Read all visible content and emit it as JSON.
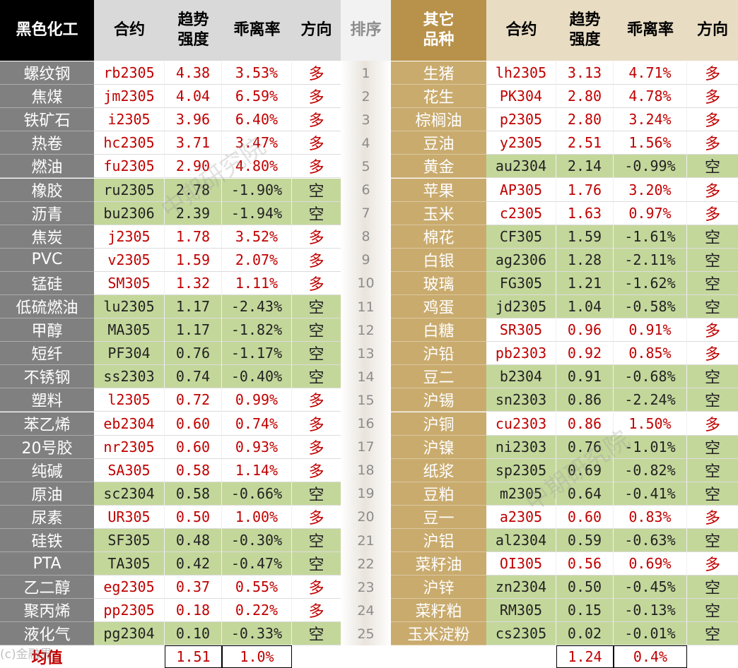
{
  "headers": {
    "left_group": "黑色化工",
    "contract": "合约",
    "strength": "趋势强度",
    "deviation": "乖离率",
    "direction": "方向",
    "rank": "排序",
    "right_group": "其它品种"
  },
  "colors": {
    "long_text": "#c00000",
    "short_bg": "#c4d79b",
    "left_header_bg": "#000000",
    "left_name_bg": "#808080",
    "right_name_bg": "#c9ab6e",
    "right_header_bg": "#b8924a",
    "right_subheader_bg": "#e8dcc3",
    "left_subheader_bg": "#d9d9d9"
  },
  "left_rows": [
    {
      "name": "螺纹钢",
      "contract": "rb2305",
      "strength": "4.38",
      "deviation": "3.53%",
      "direction": "多"
    },
    {
      "name": "焦煤",
      "contract": "jm2305",
      "strength": "4.04",
      "deviation": "6.59%",
      "direction": "多"
    },
    {
      "name": "铁矿石",
      "contract": "i2305",
      "strength": "3.96",
      "deviation": "6.40%",
      "direction": "多"
    },
    {
      "name": "热卷",
      "contract": "hc2305",
      "strength": "3.71",
      "deviation": "3.47%",
      "direction": "多"
    },
    {
      "name": "燃油",
      "contract": "fu2305",
      "strength": "2.90",
      "deviation": "4.80%",
      "direction": "多"
    },
    {
      "name": "橡胶",
      "contract": "ru2305",
      "strength": "2.78",
      "deviation": "-1.90%",
      "direction": "空"
    },
    {
      "name": "沥青",
      "contract": "bu2306",
      "strength": "2.39",
      "deviation": "-1.94%",
      "direction": "空"
    },
    {
      "name": "焦炭",
      "contract": "j2305",
      "strength": "1.78",
      "deviation": "3.52%",
      "direction": "多"
    },
    {
      "name": "PVC",
      "contract": "v2305",
      "strength": "1.59",
      "deviation": "2.07%",
      "direction": "多"
    },
    {
      "name": "锰硅",
      "contract": "SM305",
      "strength": "1.32",
      "deviation": "1.11%",
      "direction": "多"
    },
    {
      "name": "低硫燃油",
      "contract": "lu2305",
      "strength": "1.17",
      "deviation": "-2.43%",
      "direction": "空"
    },
    {
      "name": "甲醇",
      "contract": "MA305",
      "strength": "1.17",
      "deviation": "-1.82%",
      "direction": "空"
    },
    {
      "name": "短纤",
      "contract": "PF304",
      "strength": "0.76",
      "deviation": "-1.17%",
      "direction": "空"
    },
    {
      "name": "不锈钢",
      "contract": "ss2303",
      "strength": "0.74",
      "deviation": "-0.40%",
      "direction": "空"
    },
    {
      "name": "塑料",
      "contract": "l2305",
      "strength": "0.72",
      "deviation": "0.99%",
      "direction": "多"
    },
    {
      "name": "苯乙烯",
      "contract": "eb2304",
      "strength": "0.60",
      "deviation": "0.74%",
      "direction": "多"
    },
    {
      "name": "20号胶",
      "contract": "nr2305",
      "strength": "0.60",
      "deviation": "0.93%",
      "direction": "多"
    },
    {
      "name": "纯碱",
      "contract": "SA305",
      "strength": "0.58",
      "deviation": "1.14%",
      "direction": "多"
    },
    {
      "name": "原油",
      "contract": "sc2304",
      "strength": "0.58",
      "deviation": "-0.66%",
      "direction": "空"
    },
    {
      "name": "尿素",
      "contract": "UR305",
      "strength": "0.50",
      "deviation": "1.00%",
      "direction": "多"
    },
    {
      "name": "硅铁",
      "contract": "SF305",
      "strength": "0.48",
      "deviation": "-0.30%",
      "direction": "空"
    },
    {
      "name": "PTA",
      "contract": "TA305",
      "strength": "0.42",
      "deviation": "-0.47%",
      "direction": "空"
    },
    {
      "name": "乙二醇",
      "contract": "eg2305",
      "strength": "0.37",
      "deviation": "0.55%",
      "direction": "多"
    },
    {
      "name": "聚丙烯",
      "contract": "pp2305",
      "strength": "0.18",
      "deviation": "0.22%",
      "direction": "多"
    },
    {
      "name": "液化气",
      "contract": "pg2304",
      "strength": "0.10",
      "deviation": "-0.33%",
      "direction": "空"
    }
  ],
  "ranks": [
    "1",
    "2",
    "3",
    "4",
    "5",
    "6",
    "7",
    "8",
    "9",
    "10",
    "11",
    "12",
    "13",
    "14",
    "15",
    "16",
    "17",
    "18",
    "19",
    "20",
    "21",
    "22",
    "23",
    "24",
    "25"
  ],
  "right_rows": [
    {
      "name": "生猪",
      "contract": "lh2305",
      "strength": "3.13",
      "deviation": "4.71%",
      "direction": "多"
    },
    {
      "name": "花生",
      "contract": "PK304",
      "strength": "2.80",
      "deviation": "4.78%",
      "direction": "多"
    },
    {
      "name": "棕榈油",
      "contract": "p2305",
      "strength": "2.80",
      "deviation": "3.24%",
      "direction": "多"
    },
    {
      "name": "豆油",
      "contract": "y2305",
      "strength": "2.51",
      "deviation": "1.56%",
      "direction": "多"
    },
    {
      "name": "黄金",
      "contract": "au2304",
      "strength": "2.14",
      "deviation": "-0.99%",
      "direction": "空"
    },
    {
      "name": "苹果",
      "contract": "AP305",
      "strength": "1.76",
      "deviation": "3.20%",
      "direction": "多"
    },
    {
      "name": "玉米",
      "contract": "c2305",
      "strength": "1.63",
      "deviation": "0.97%",
      "direction": "多"
    },
    {
      "name": "棉花",
      "contract": "CF305",
      "strength": "1.59",
      "deviation": "-1.61%",
      "direction": "空"
    },
    {
      "name": "白银",
      "contract": "ag2306",
      "strength": "1.28",
      "deviation": "-2.11%",
      "direction": "空"
    },
    {
      "name": "玻璃",
      "contract": "FG305",
      "strength": "1.21",
      "deviation": "-1.62%",
      "direction": "空"
    },
    {
      "name": "鸡蛋",
      "contract": "jd2305",
      "strength": "1.04",
      "deviation": "-0.58%",
      "direction": "空"
    },
    {
      "name": "白糖",
      "contract": "SR305",
      "strength": "0.96",
      "deviation": "0.91%",
      "direction": "多"
    },
    {
      "name": "沪铅",
      "contract": "pb2303",
      "strength": "0.92",
      "deviation": "0.85%",
      "direction": "多"
    },
    {
      "name": "豆二",
      "contract": "b2304",
      "strength": "0.91",
      "deviation": "-0.68%",
      "direction": "空"
    },
    {
      "name": "沪锡",
      "contract": "sn2303",
      "strength": "0.86",
      "deviation": "-2.24%",
      "direction": "空"
    },
    {
      "name": "沪铜",
      "contract": "cu2303",
      "strength": "0.86",
      "deviation": "1.50%",
      "direction": "多"
    },
    {
      "name": "沪镍",
      "contract": "ni2303",
      "strength": "0.76",
      "deviation": "-1.01%",
      "direction": "空"
    },
    {
      "name": "纸浆",
      "contract": "sp2305",
      "strength": "0.69",
      "deviation": "-0.82%",
      "direction": "空"
    },
    {
      "name": "豆粕",
      "contract": "m2305",
      "strength": "0.64",
      "deviation": "-0.41%",
      "direction": "空"
    },
    {
      "name": "豆一",
      "contract": "a2305",
      "strength": "0.60",
      "deviation": "0.83%",
      "direction": "多"
    },
    {
      "name": "沪铝",
      "contract": "al2304",
      "strength": "0.59",
      "deviation": "-0.63%",
      "direction": "空"
    },
    {
      "name": "菜籽油",
      "contract": "OI305",
      "strength": "0.56",
      "deviation": "0.69%",
      "direction": "多"
    },
    {
      "name": "沪锌",
      "contract": "zn2304",
      "strength": "0.50",
      "deviation": "-0.45%",
      "direction": "空"
    },
    {
      "name": "菜籽粕",
      "contract": "RM305",
      "strength": "0.15",
      "deviation": "-0.13%",
      "direction": "空"
    },
    {
      "name": "玉米淀粉",
      "contract": "cs2305",
      "strength": "0.02",
      "deviation": "-0.01%",
      "direction": "空"
    }
  ],
  "footer": {
    "label": "均值",
    "left_avg_strength": "1.51",
    "left_avg_deviation": "1.0%",
    "right_avg_strength": "1.24",
    "right_avg_deviation": "0.4%"
  },
  "watermark": "中期研究院",
  "logo_text": "(c)金融界"
}
